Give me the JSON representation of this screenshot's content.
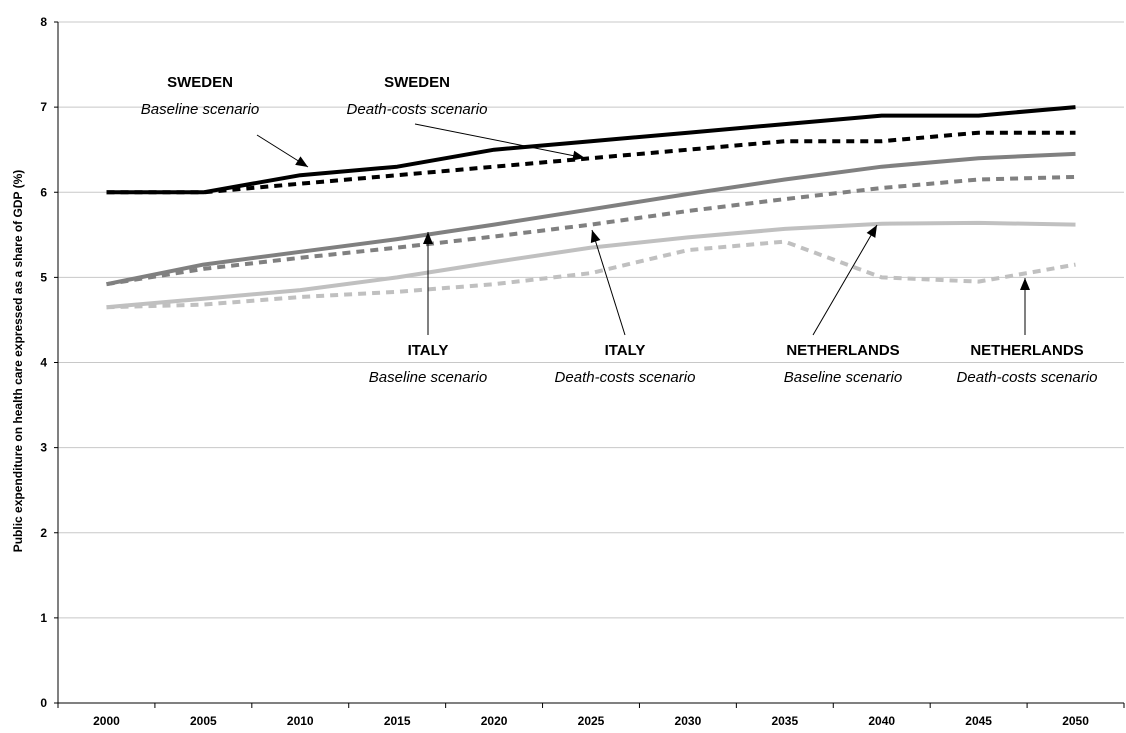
{
  "chart_data": {
    "type": "line",
    "title": "",
    "xlabel": "",
    "ylabel": "Public expenditure on health care expressed as a share of GDP (%)",
    "ylim": [
      0,
      8
    ],
    "yticks": [
      "0",
      "1",
      "2",
      "3",
      "4",
      "5",
      "6",
      "7",
      "8"
    ],
    "grid": "horizontal",
    "legend": "none",
    "categories": [
      "2000",
      "2005",
      "2010",
      "2015",
      "2020",
      "2025",
      "2030",
      "2035",
      "2040",
      "2045",
      "2050"
    ],
    "series": [
      {
        "key": "sweden_baseline",
        "values": [
          6.0,
          6.0,
          6.2,
          6.3,
          6.5,
          6.6,
          6.7,
          6.8,
          6.9,
          6.9,
          7.0
        ],
        "color": "#000000",
        "dash": "solid"
      },
      {
        "key": "sweden_death",
        "values": [
          6.0,
          6.0,
          6.1,
          6.2,
          6.3,
          6.4,
          6.5,
          6.6,
          6.6,
          6.7,
          6.7
        ],
        "color": "#000000",
        "dash": "dashed"
      },
      {
        "key": "italy_baseline",
        "values": [
          4.92,
          5.15,
          5.3,
          5.45,
          5.62,
          5.8,
          5.98,
          6.15,
          6.3,
          6.4,
          6.45
        ],
        "color": "#808080",
        "dash": "solid"
      },
      {
        "key": "italy_death",
        "values": [
          4.92,
          5.1,
          5.23,
          5.35,
          5.48,
          5.62,
          5.78,
          5.92,
          6.05,
          6.15,
          6.18
        ],
        "color": "#808080",
        "dash": "dashed"
      },
      {
        "key": "netherlands_baseline",
        "values": [
          4.65,
          4.75,
          4.85,
          5.0,
          5.18,
          5.35,
          5.47,
          5.57,
          5.63,
          5.64,
          5.62
        ],
        "color": "#c0c0c0",
        "dash": "solid"
      },
      {
        "key": "netherlands_death",
        "values": [
          4.65,
          4.68,
          4.77,
          4.83,
          4.92,
          5.05,
          5.32,
          5.42,
          5.0,
          4.95,
          5.15
        ],
        "color": "#c0c0c0",
        "dash": "dashed"
      }
    ],
    "annotations": [
      {
        "key": "ann_sweden_baseline",
        "country": "SWEDEN",
        "scenario": "Baseline scenario"
      },
      {
        "key": "ann_sweden_death",
        "country": "SWEDEN",
        "scenario": "Death-costs scenario"
      },
      {
        "key": "ann_italy_baseline",
        "country": "ITALY",
        "scenario": "Baseline scenario"
      },
      {
        "key": "ann_italy_death",
        "country": "ITALY",
        "scenario": "Death-costs scenario"
      },
      {
        "key": "ann_nl_baseline",
        "country": "NETHERLANDS",
        "scenario": "Baseline scenario"
      },
      {
        "key": "ann_nl_death",
        "country": "NETHERLANDS",
        "scenario": "Death-costs scenario"
      }
    ]
  }
}
